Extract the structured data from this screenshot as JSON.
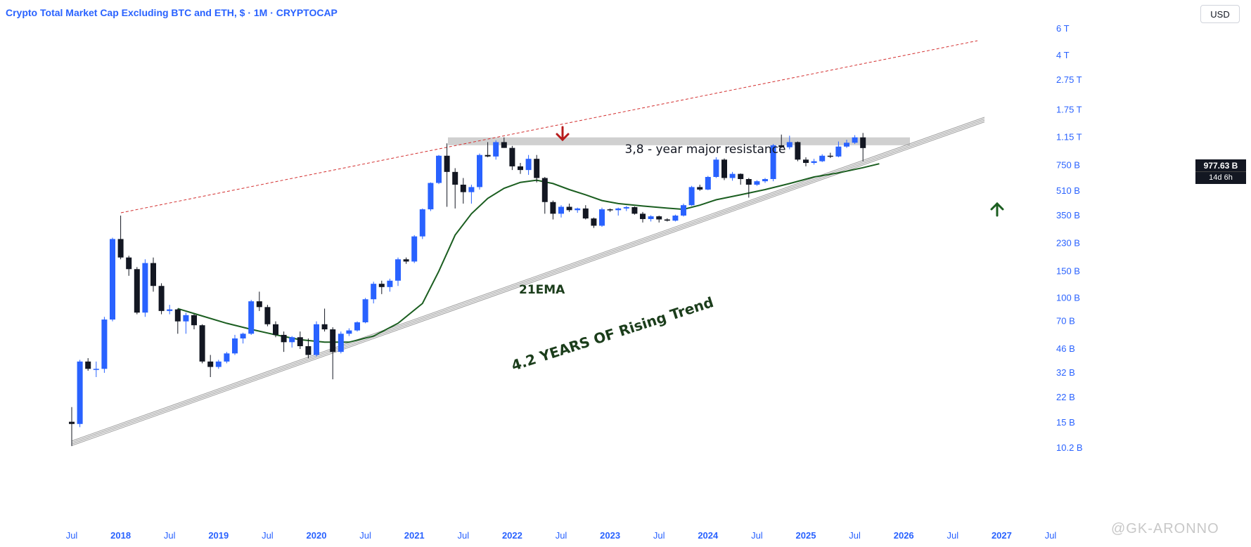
{
  "header": {
    "title": "Crypto Total Market Cap Excluding BTC and ETH, $ · 1M · CRYPTOCAP",
    "currency": "USD"
  },
  "price_tag": {
    "value": "977.63 B",
    "countdown": "14d 6h"
  },
  "watermark": "@GK-ARONNO",
  "colors": {
    "up": "#2962ff",
    "down": "#131722",
    "ema": "#1b5e20",
    "resistance_band": "#d0d0d0",
    "dashed": "#d32f2f",
    "trend": "#9e9e9e",
    "arrow_down": "#b71c1c",
    "arrow_up": "#1b5e20",
    "axis_text": "#2962ff"
  },
  "chart_data": {
    "type": "candlestick",
    "interval": "1M",
    "y_scale": "log",
    "y_ticks": [
      "6 T",
      "4 T",
      "2.75 T",
      "1.75 T",
      "1.15 T",
      "750 B",
      "510 B",
      "350 B",
      "230 B",
      "150 B",
      "100 B",
      "70 B",
      "46 B",
      "32 B",
      "22 B",
      "15 B",
      "10.2 B"
    ],
    "x_ticks": [
      {
        "label": "Jul",
        "bold": false
      },
      {
        "label": "2018",
        "bold": true
      },
      {
        "label": "Jul",
        "bold": false
      },
      {
        "label": "2019",
        "bold": true
      },
      {
        "label": "Jul",
        "bold": false
      },
      {
        "label": "2020",
        "bold": true
      },
      {
        "label": "Jul",
        "bold": false
      },
      {
        "label": "2021",
        "bold": true
      },
      {
        "label": "Jul",
        "bold": false
      },
      {
        "label": "2022",
        "bold": true
      },
      {
        "label": "Jul",
        "bold": false
      },
      {
        "label": "2023",
        "bold": true
      },
      {
        "label": "Jul",
        "bold": false
      },
      {
        "label": "2024",
        "bold": true
      },
      {
        "label": "Jul",
        "bold": false
      },
      {
        "label": "2025",
        "bold": true
      },
      {
        "label": "Jul",
        "bold": false
      },
      {
        "label": "2026",
        "bold": true
      },
      {
        "label": "Jul",
        "bold": false
      },
      {
        "label": "2027",
        "bold": true
      },
      {
        "label": "Jul",
        "bold": false
      }
    ],
    "candles": [
      {
        "o": 15.2,
        "h": 19,
        "l": 10.5,
        "c": 14.7
      },
      {
        "o": 14.7,
        "h": 39,
        "l": 14,
        "c": 38
      },
      {
        "o": 38,
        "h": 40,
        "l": 33,
        "c": 34
      },
      {
        "o": 34,
        "h": 38,
        "l": 30,
        "c": 34
      },
      {
        "o": 34,
        "h": 75,
        "l": 32,
        "c": 72
      },
      {
        "o": 72,
        "h": 250,
        "l": 70,
        "c": 245
      },
      {
        "o": 245,
        "h": 350,
        "l": 180,
        "c": 185
      },
      {
        "o": 185,
        "h": 190,
        "l": 140,
        "c": 155
      },
      {
        "o": 155,
        "h": 160,
        "l": 78,
        "c": 80
      },
      {
        "o": 80,
        "h": 180,
        "l": 75,
        "c": 170
      },
      {
        "o": 170,
        "h": 185,
        "l": 110,
        "c": 120
      },
      {
        "o": 120,
        "h": 125,
        "l": 78,
        "c": 82
      },
      {
        "o": 82,
        "h": 90,
        "l": 78,
        "c": 84
      },
      {
        "o": 84,
        "h": 85,
        "l": 58,
        "c": 70
      },
      {
        "o": 70,
        "h": 80,
        "l": 58,
        "c": 77
      },
      {
        "o": 77,
        "h": 78,
        "l": 62,
        "c": 66
      },
      {
        "o": 66,
        "h": 67,
        "l": 37,
        "c": 38
      },
      {
        "o": 38,
        "h": 42,
        "l": 30,
        "c": 35
      },
      {
        "o": 35,
        "h": 39,
        "l": 34,
        "c": 38
      },
      {
        "o": 38,
        "h": 44,
        "l": 37,
        "c": 43
      },
      {
        "o": 43,
        "h": 57,
        "l": 42,
        "c": 54
      },
      {
        "o": 54,
        "h": 59,
        "l": 50,
        "c": 58
      },
      {
        "o": 58,
        "h": 97,
        "l": 57,
        "c": 95
      },
      {
        "o": 95,
        "h": 110,
        "l": 82,
        "c": 87
      },
      {
        "o": 87,
        "h": 90,
        "l": 65,
        "c": 67
      },
      {
        "o": 67,
        "h": 70,
        "l": 55,
        "c": 57
      },
      {
        "o": 57,
        "h": 60,
        "l": 44,
        "c": 51
      },
      {
        "o": 51,
        "h": 56,
        "l": 47,
        "c": 55
      },
      {
        "o": 55,
        "h": 60,
        "l": 46,
        "c": 48
      },
      {
        "o": 48,
        "h": 54,
        "l": 40,
        "c": 42
      },
      {
        "o": 42,
        "h": 70,
        "l": 41,
        "c": 67
      },
      {
        "o": 67,
        "h": 85,
        "l": 60,
        "c": 62
      },
      {
        "o": 62,
        "h": 64,
        "l": 29,
        "c": 44
      },
      {
        "o": 44,
        "h": 60,
        "l": 43,
        "c": 58
      },
      {
        "o": 58,
        "h": 63,
        "l": 56,
        "c": 61
      },
      {
        "o": 61,
        "h": 70,
        "l": 60,
        "c": 69
      },
      {
        "o": 69,
        "h": 100,
        "l": 68,
        "c": 98
      },
      {
        "o": 98,
        "h": 128,
        "l": 92,
        "c": 124
      },
      {
        "o": 124,
        "h": 130,
        "l": 106,
        "c": 118
      },
      {
        "o": 118,
        "h": 134,
        "l": 110,
        "c": 130
      },
      {
        "o": 130,
        "h": 185,
        "l": 120,
        "c": 180
      },
      {
        "o": 180,
        "h": 185,
        "l": 168,
        "c": 174
      },
      {
        "o": 174,
        "h": 260,
        "l": 170,
        "c": 255
      },
      {
        "o": 255,
        "h": 390,
        "l": 245,
        "c": 385
      },
      {
        "o": 385,
        "h": 580,
        "l": 375,
        "c": 575
      },
      {
        "o": 575,
        "h": 880,
        "l": 565,
        "c": 870
      },
      {
        "o": 870,
        "h": 1050,
        "l": 400,
        "c": 680
      },
      {
        "o": 680,
        "h": 720,
        "l": 390,
        "c": 560
      },
      {
        "o": 560,
        "h": 620,
        "l": 420,
        "c": 500
      },
      {
        "o": 500,
        "h": 560,
        "l": 420,
        "c": 540
      },
      {
        "o": 540,
        "h": 900,
        "l": 520,
        "c": 880
      },
      {
        "o": 880,
        "h": 1070,
        "l": 850,
        "c": 860
      },
      {
        "o": 860,
        "h": 1100,
        "l": 820,
        "c": 1070
      },
      {
        "o": 1070,
        "h": 1150,
        "l": 980,
        "c": 980
      },
      {
        "o": 980,
        "h": 1010,
        "l": 700,
        "c": 740
      },
      {
        "o": 740,
        "h": 780,
        "l": 660,
        "c": 700
      },
      {
        "o": 700,
        "h": 880,
        "l": 650,
        "c": 830
      },
      {
        "o": 830,
        "h": 880,
        "l": 580,
        "c": 620
      },
      {
        "o": 620,
        "h": 630,
        "l": 360,
        "c": 430
      },
      {
        "o": 430,
        "h": 440,
        "l": 330,
        "c": 360
      },
      {
        "o": 360,
        "h": 410,
        "l": 340,
        "c": 400
      },
      {
        "o": 400,
        "h": 420,
        "l": 370,
        "c": 380
      },
      {
        "o": 380,
        "h": 395,
        "l": 365,
        "c": 390
      },
      {
        "o": 390,
        "h": 410,
        "l": 330,
        "c": 335
      },
      {
        "o": 335,
        "h": 340,
        "l": 290,
        "c": 300
      },
      {
        "o": 300,
        "h": 395,
        "l": 295,
        "c": 385
      },
      {
        "o": 385,
        "h": 390,
        "l": 370,
        "c": 380
      },
      {
        "o": 380,
        "h": 395,
        "l": 350,
        "c": 390
      },
      {
        "o": 390,
        "h": 405,
        "l": 375,
        "c": 398
      },
      {
        "o": 398,
        "h": 402,
        "l": 355,
        "c": 360
      },
      {
        "o": 360,
        "h": 370,
        "l": 315,
        "c": 332
      },
      {
        "o": 332,
        "h": 352,
        "l": 320,
        "c": 346
      },
      {
        "o": 346,
        "h": 350,
        "l": 315,
        "c": 330
      },
      {
        "o": 330,
        "h": 336,
        "l": 320,
        "c": 324
      },
      {
        "o": 324,
        "h": 355,
        "l": 320,
        "c": 350
      },
      {
        "o": 350,
        "h": 420,
        "l": 345,
        "c": 410
      },
      {
        "o": 410,
        "h": 550,
        "l": 405,
        "c": 540
      },
      {
        "o": 540,
        "h": 560,
        "l": 510,
        "c": 520
      },
      {
        "o": 520,
        "h": 640,
        "l": 515,
        "c": 630
      },
      {
        "o": 630,
        "h": 850,
        "l": 620,
        "c": 820
      },
      {
        "o": 820,
        "h": 835,
        "l": 600,
        "c": 620
      },
      {
        "o": 620,
        "h": 680,
        "l": 595,
        "c": 660
      },
      {
        "o": 660,
        "h": 665,
        "l": 560,
        "c": 610
      },
      {
        "o": 610,
        "h": 620,
        "l": 460,
        "c": 560
      },
      {
        "o": 560,
        "h": 600,
        "l": 550,
        "c": 590
      },
      {
        "o": 590,
        "h": 620,
        "l": 575,
        "c": 610
      },
      {
        "o": 610,
        "h": 1040,
        "l": 590,
        "c": 1020
      },
      {
        "o": 1020,
        "h": 1200,
        "l": 980,
        "c": 990
      },
      {
        "o": 990,
        "h": 1180,
        "l": 960,
        "c": 1070
      },
      {
        "o": 1070,
        "h": 1080,
        "l": 800,
        "c": 820
      },
      {
        "o": 820,
        "h": 850,
        "l": 740,
        "c": 780
      },
      {
        "o": 780,
        "h": 830,
        "l": 760,
        "c": 800
      },
      {
        "o": 800,
        "h": 890,
        "l": 790,
        "c": 870
      },
      {
        "o": 870,
        "h": 910,
        "l": 840,
        "c": 860
      },
      {
        "o": 860,
        "h": 1080,
        "l": 850,
        "c": 1000
      },
      {
        "o": 1000,
        "h": 1110,
        "l": 980,
        "c": 1060
      },
      {
        "o": 1060,
        "h": 1190,
        "l": 1040,
        "c": 1150
      },
      {
        "o": 1150,
        "h": 1230,
        "l": 800,
        "c": 977.63
      }
    ],
    "ema21": [
      {
        "x": 2018.583,
        "y": 85
      },
      {
        "x": 2018.833,
        "y": 76
      },
      {
        "x": 2019.083,
        "y": 68
      },
      {
        "x": 2019.333,
        "y": 62
      },
      {
        "x": 2019.583,
        "y": 57
      },
      {
        "x": 2019.833,
        "y": 53
      },
      {
        "x": 2020.083,
        "y": 51
      },
      {
        "x": 2020.333,
        "y": 51
      },
      {
        "x": 2020.583,
        "y": 56
      },
      {
        "x": 2020.833,
        "y": 68
      },
      {
        "x": 2021.083,
        "y": 92
      },
      {
        "x": 2021.25,
        "y": 150
      },
      {
        "x": 2021.417,
        "y": 260
      },
      {
        "x": 2021.583,
        "y": 360
      },
      {
        "x": 2021.75,
        "y": 455
      },
      {
        "x": 2021.917,
        "y": 530
      },
      {
        "x": 2022.083,
        "y": 580
      },
      {
        "x": 2022.25,
        "y": 600
      },
      {
        "x": 2022.417,
        "y": 570
      },
      {
        "x": 2022.583,
        "y": 520
      },
      {
        "x": 2022.75,
        "y": 480
      },
      {
        "x": 2022.917,
        "y": 440
      },
      {
        "x": 2023.083,
        "y": 420
      },
      {
        "x": 2023.333,
        "y": 405
      },
      {
        "x": 2023.583,
        "y": 392
      },
      {
        "x": 2023.75,
        "y": 385
      },
      {
        "x": 2023.917,
        "y": 410
      },
      {
        "x": 2024.083,
        "y": 445
      },
      {
        "x": 2024.333,
        "y": 480
      },
      {
        "x": 2024.583,
        "y": 520
      },
      {
        "x": 2024.833,
        "y": 570
      },
      {
        "x": 2025.083,
        "y": 630
      },
      {
        "x": 2025.333,
        "y": 670
      },
      {
        "x": 2025.583,
        "y": 725
      },
      {
        "x": 2025.75,
        "y": 770
      }
    ],
    "annotations": {
      "resistance_label": "3,8 - year major resistance",
      "resistance_band": [
        1020,
        1150
      ],
      "trend_label": "4.2 YEARS OF Rising Trend",
      "ema_label": "21EMA"
    }
  }
}
